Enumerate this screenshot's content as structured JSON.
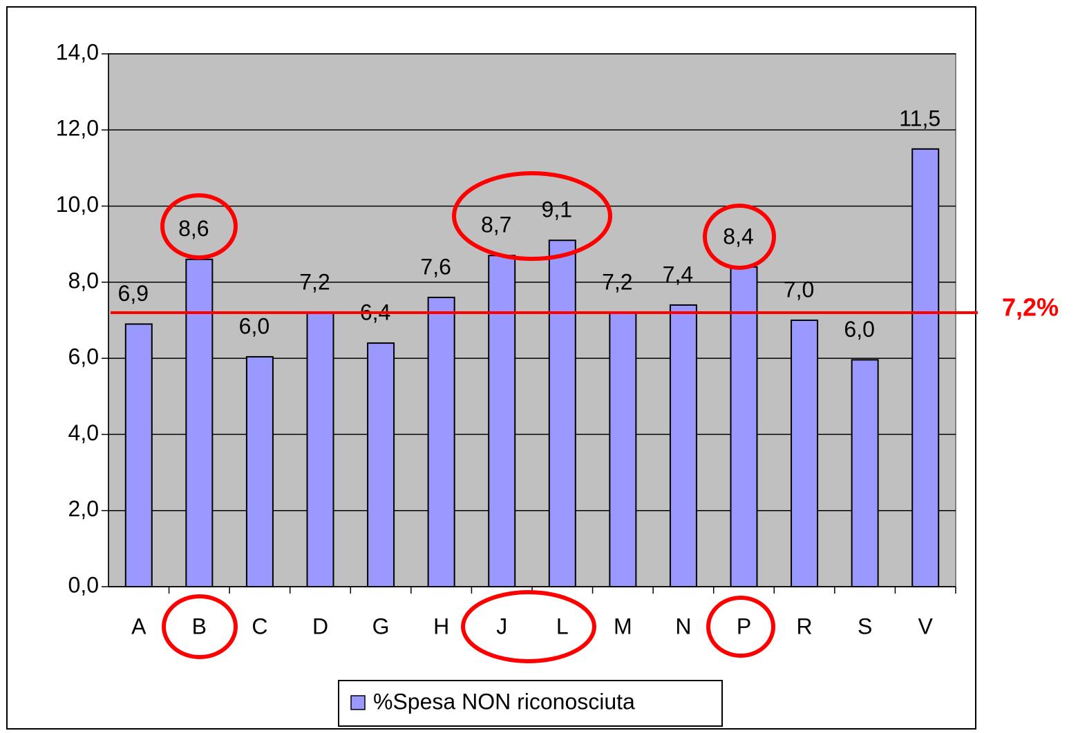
{
  "chart_data": {
    "type": "bar",
    "categories": [
      "A",
      "B",
      "C",
      "D",
      "G",
      "H",
      "J",
      "L",
      "M",
      "N",
      "P",
      "R",
      "S",
      "V"
    ],
    "series": [
      {
        "name": "%Spesa NON riconosciuta",
        "color": "#9999ff",
        "values": [
          6.9,
          8.6,
          6.04,
          7.2,
          6.4,
          7.6,
          8.7,
          9.1,
          7.2,
          7.4,
          8.4,
          7.0,
          5.96,
          11.5
        ],
        "value_labels": [
          "6,9",
          "8,6",
          "6,0",
          "7,2",
          "6,4",
          "7,6",
          "8,7",
          "9,1",
          "7,2",
          "7,4",
          "8,4",
          "7,0",
          "6,0",
          "11,5"
        ]
      }
    ],
    "ylim": [
      0,
      14
    ],
    "yticks": [
      {
        "value": 0,
        "label": "0,0"
      },
      {
        "value": 2,
        "label": "2,0"
      },
      {
        "value": 4,
        "label": "4,0"
      },
      {
        "value": 6,
        "label": "6,0"
      },
      {
        "value": 8,
        "label": "8,0"
      },
      {
        "value": 10,
        "label": "10,0"
      },
      {
        "value": 12,
        "label": "12,0"
      },
      {
        "value": 14,
        "label": "14,0"
      }
    ],
    "grid": true,
    "reference_line": {
      "value": 7.2,
      "label": "7,2%",
      "color": "#ff0000"
    },
    "legend": "bottom"
  }
}
